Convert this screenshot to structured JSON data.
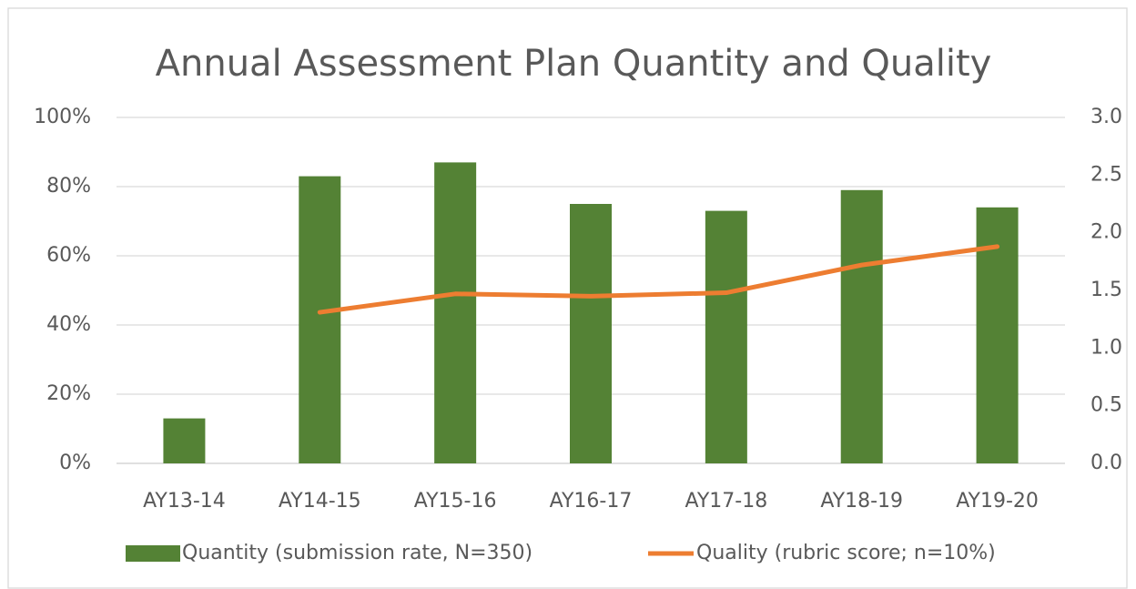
{
  "chart_data": {
    "type": "bar",
    "title": "Annual Assessment Plan Quantity and Quality",
    "categories": [
      "AY13-14",
      "AY14-15",
      "AY15-16",
      "AY16-17",
      "AY17-18",
      "AY18-19",
      "AY19-20"
    ],
    "series": [
      {
        "name": "Quantity (submission rate, N=350)",
        "type": "bar",
        "color": "#548235",
        "values": [
          13,
          83,
          87,
          75,
          73,
          79,
          74
        ]
      },
      {
        "name": "Quality (rubric score; n=10%)",
        "type": "line",
        "axis": "y2",
        "color": "#ed7d31",
        "values": [
          null,
          1.31,
          1.47,
          1.45,
          1.48,
          1.72,
          1.88
        ]
      }
    ],
    "ylim": [
      0,
      100
    ],
    "yticks": [
      {
        "value": 0,
        "label": "0%"
      },
      {
        "value": 20,
        "label": "20%"
      },
      {
        "value": 40,
        "label": "40%"
      },
      {
        "value": 60,
        "label": "60%"
      },
      {
        "value": 80,
        "label": "80%"
      },
      {
        "value": 100,
        "label": "100%"
      }
    ],
    "y2lim": [
      0,
      3
    ],
    "y2ticks": [
      {
        "value": 0,
        "label": "0.0"
      },
      0.5,
      {
        "value": 1,
        "label": "1.0"
      },
      1.5,
      {
        "value": 2,
        "label": "2.0"
      },
      2.5,
      {
        "value": 3,
        "label": "3.0"
      }
    ],
    "grid": true,
    "legend": "bottom"
  }
}
